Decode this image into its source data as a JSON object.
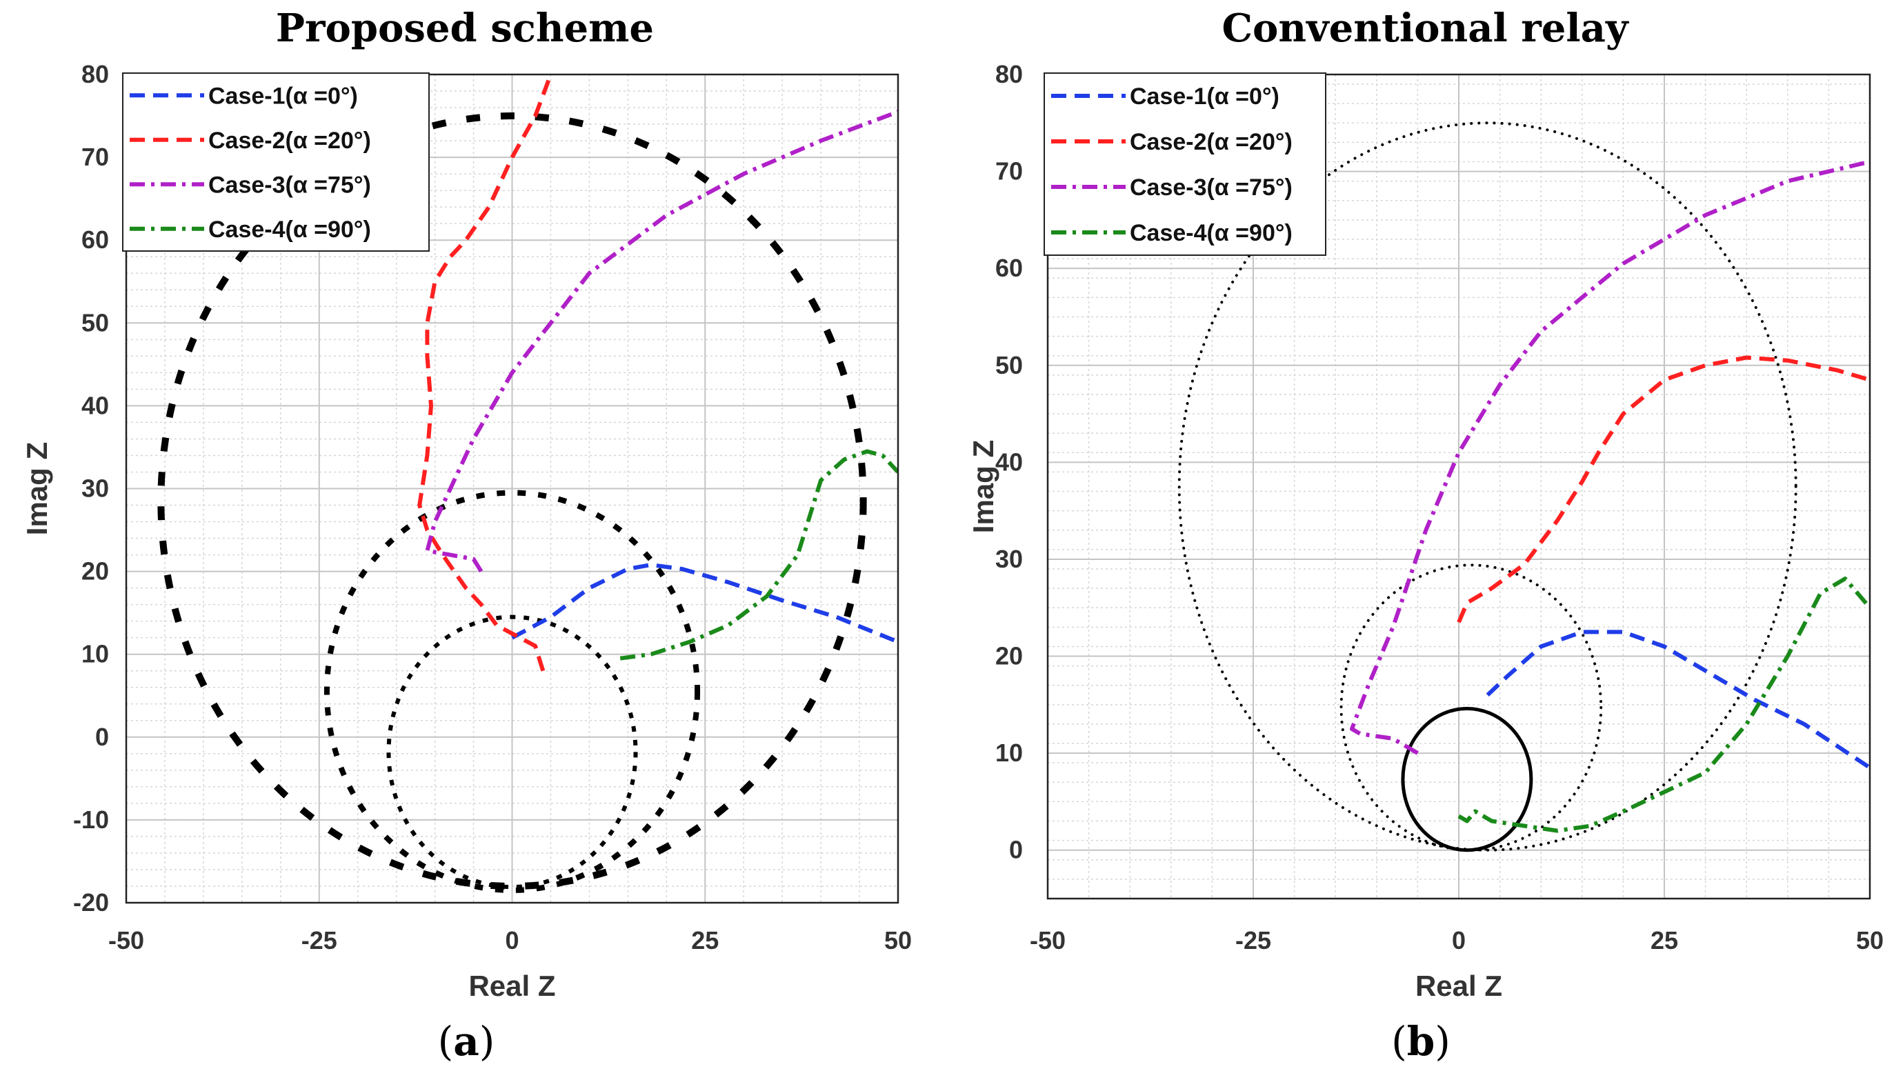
{
  "chart_data": [
    {
      "type": "line",
      "panel_label": "a",
      "title": "Proposed scheme",
      "xlabel": "Real Z",
      "ylabel": "Imag Z",
      "xlim": [
        -50,
        50
      ],
      "ylim": [
        -20,
        80
      ],
      "xticks": [
        -50,
        -25,
        0,
        25,
        50
      ],
      "yticks": [
        -20,
        -10,
        0,
        10,
        20,
        30,
        40,
        50,
        60,
        70,
        80
      ],
      "grid": true,
      "legend_position": "top-left",
      "zones": [
        {
          "name": "outer zone",
          "center": [
            0,
            28.5
          ],
          "rx": 45.5,
          "ry": 46.5,
          "style": "dotted",
          "dot_size": "large"
        },
        {
          "name": "middle zone",
          "center": [
            0,
            5.5
          ],
          "rx": 24,
          "ry": 24,
          "style": "dotted",
          "dot_size": "medium"
        },
        {
          "name": "inner zone",
          "center": [
            0,
            -1.8
          ],
          "rx": 16,
          "ry": 16.3,
          "style": "dotted",
          "dot_size": "small"
        }
      ],
      "series": [
        {
          "name": "Case-1(α =0°)",
          "color": "#1f3de8",
          "dash": "dashed",
          "points": [
            [
              0,
              12
            ],
            [
              5,
              14.5
            ],
            [
              10,
              18
            ],
            [
              15,
              20.3
            ],
            [
              18,
              20.8
            ],
            [
              22,
              20.3
            ],
            [
              28,
              18.7
            ],
            [
              35,
              16.5
            ],
            [
              42,
              14.5
            ],
            [
              50,
              11.5
            ]
          ]
        },
        {
          "name": "Case-2(α =20°)",
          "color": "#ff2020",
          "dash": "dashed",
          "points": [
            [
              4,
              8
            ],
            [
              3,
              11
            ],
            [
              0,
              12.5
            ],
            [
              -2,
              13.5
            ],
            [
              -4,
              16
            ],
            [
              -6,
              18
            ],
            [
              -7.5,
              20
            ],
            [
              -9,
              22
            ],
            [
              -11,
              25
            ],
            [
              -12,
              28
            ],
            [
              -11,
              34
            ],
            [
              -10.5,
              40
            ],
            [
              -11,
              46
            ],
            [
              -11,
              50
            ],
            [
              -10,
              55
            ],
            [
              -8,
              58
            ],
            [
              -6,
              60
            ],
            [
              -3,
              64
            ],
            [
              0,
              70
            ],
            [
              3,
              75
            ],
            [
              5,
              80
            ]
          ]
        },
        {
          "name": "Case-3(α =75°)",
          "color": "#b020c8",
          "dash": "dashdot",
          "points": [
            [
              -4,
              20
            ],
            [
              -5,
              21.5
            ],
            [
              -8,
              22
            ],
            [
              -11,
              22.5
            ],
            [
              -10,
              26
            ],
            [
              -8,
              30
            ],
            [
              -5,
              36
            ],
            [
              0,
              44
            ],
            [
              5,
              50
            ],
            [
              10,
              56
            ],
            [
              20,
              63
            ],
            [
              30,
              68
            ],
            [
              40,
              72
            ],
            [
              50,
              75.5
            ]
          ]
        },
        {
          "name": "Case-4(α =90°)",
          "color": "#1a8a1a",
          "dash": "dashdot",
          "points": [
            [
              14,
              9.5
            ],
            [
              18,
              10
            ],
            [
              23,
              11.5
            ],
            [
              28,
              13.5
            ],
            [
              33,
              17
            ],
            [
              37,
              22
            ],
            [
              40,
              31
            ],
            [
              43,
              33.5
            ],
            [
              46,
              34.5
            ],
            [
              48,
              34
            ],
            [
              50,
              32
            ]
          ]
        }
      ]
    },
    {
      "type": "line",
      "panel_label": "b",
      "title": "Conventional relay",
      "xlabel": "Real Z",
      "ylabel": "Imag Z",
      "xlim": [
        -50,
        50
      ],
      "ylim": [
        -5,
        80
      ],
      "xticks": [
        -50,
        -25,
        0,
        25,
        50
      ],
      "yticks": [
        0,
        10,
        20,
        30,
        40,
        50,
        60,
        70,
        80
      ],
      "grid": true,
      "legend_position": "top-left",
      "zones": [
        {
          "name": "outer zone",
          "center": [
            3.5,
            37.5
          ],
          "rx": 37.5,
          "ry": 37.5,
          "style": "dotted",
          "dot_size": "small"
        },
        {
          "name": "middle zone",
          "center": [
            1.5,
            14.7
          ],
          "rx": 15.8,
          "ry": 14.7,
          "style": "dotted",
          "dot_size": "small"
        },
        {
          "name": "inner zone",
          "center": [
            1,
            7.3
          ],
          "rx": 7.8,
          "ry": 7.3,
          "style": "solid"
        }
      ],
      "series": [
        {
          "name": "Case-1(α =0°)",
          "color": "#1f3de8",
          "dash": "dashed",
          "points": [
            [
              3.5,
              16
            ],
            [
              6,
              18
            ],
            [
              10,
              21
            ],
            [
              15,
              22.5
            ],
            [
              20,
              22.5
            ],
            [
              25,
              21
            ],
            [
              30,
              18.5
            ],
            [
              36,
              15.5
            ],
            [
              42,
              13
            ],
            [
              50,
              8.5
            ]
          ]
        },
        {
          "name": "Case-2(α =20°)",
          "color": "#ff2020",
          "dash": "dashed",
          "points": [
            [
              0,
              23.5
            ],
            [
              1,
              25.5
            ],
            [
              4,
              27
            ],
            [
              8,
              29.5
            ],
            [
              12,
              34
            ],
            [
              15,
              38
            ],
            [
              17,
              41
            ],
            [
              20,
              45
            ],
            [
              25,
              48.5
            ],
            [
              30,
              50
            ],
            [
              35,
              50.8
            ],
            [
              40,
              50.5
            ],
            [
              46,
              49.5
            ],
            [
              50,
              48.5
            ]
          ]
        },
        {
          "name": "Case-3(α =75°)",
          "color": "#b020c8",
          "dash": "dashdot",
          "points": [
            [
              -5,
              10
            ],
            [
              -8,
              11.5
            ],
            [
              -12,
              12
            ],
            [
              -13,
              12.5
            ],
            [
              -11,
              17
            ],
            [
              -8,
              23
            ],
            [
              -6,
              28
            ],
            [
              -4,
              33
            ],
            [
              0,
              41
            ],
            [
              5,
              48
            ],
            [
              10,
              53.5
            ],
            [
              20,
              60.5
            ],
            [
              30,
              65.5
            ],
            [
              40,
              69
            ],
            [
              50,
              71
            ]
          ]
        },
        {
          "name": "Case-4(α =90°)",
          "color": "#1a8a1a",
          "dash": "dashdot",
          "points": [
            [
              0,
              3.5
            ],
            [
              1,
              3
            ],
            [
              2,
              4
            ],
            [
              4,
              3
            ],
            [
              8,
              2.5
            ],
            [
              12,
              2
            ],
            [
              16,
              2.5
            ],
            [
              20,
              4
            ],
            [
              25,
              6
            ],
            [
              30,
              8
            ],
            [
              35,
              13
            ],
            [
              40,
              20
            ],
            [
              44,
              26.5
            ],
            [
              47,
              28
            ],
            [
              50,
              25
            ]
          ]
        }
      ]
    }
  ]
}
